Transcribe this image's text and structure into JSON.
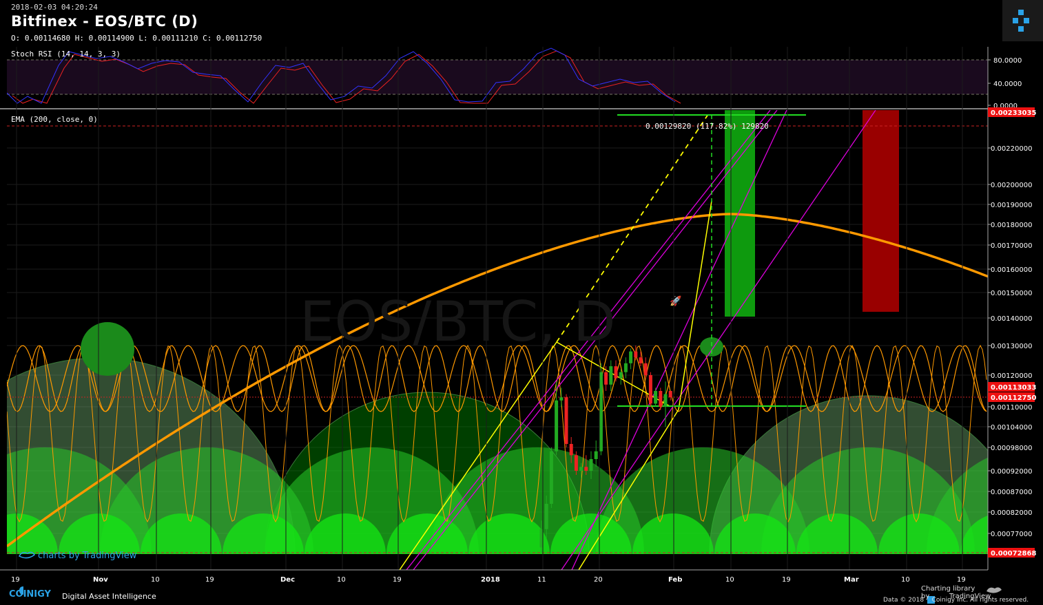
{
  "header": {
    "datetime": "2018-02-03 04:20:24",
    "title": "Bitfinex - EOS/BTC (D)",
    "ohlc": "O: 0.00114680 H: 0.00114900 L: 0.00111210 C: 0.00112750",
    "watermark": "EOS/BTC, D"
  },
  "indicators": {
    "stoch": "Stoch RSI (14, 14, 3, 3)",
    "ema": "EMA (200, close, 0)"
  },
  "measure_label": "0.00129820 (117.82%) 129820",
  "footer": {
    "brand": "COINIGY",
    "tagline": "Digital Asset Intelligence",
    "tv_watermark": "charts by TradingView",
    "charting_lib": "Charting library by",
    "tradingview": "TradingView",
    "copyright": "Data © 2018",
    "copyright2": "Coinigy Inc. All rights reserved."
  },
  "colors": {
    "up": "#22aa22",
    "down": "#ee2222",
    "ema": "#ff9900",
    "cycle": "#ff9900",
    "fib": "#ffff00",
    "channel": "#dd00dd",
    "target": "#22cc22",
    "stop": "#aa0000",
    "stoch_k": "#3333ff",
    "stoch_d": "#ee2222"
  },
  "chart_data": [
    {
      "type": "line",
      "name": "Stoch RSI",
      "yticks": [
        "80.0000",
        "40.0000",
        "0.0000"
      ],
      "ylim": [
        0,
        100
      ],
      "levels": [
        80,
        20
      ]
    },
    {
      "type": "candlestick",
      "symbol": "EOS/BTC",
      "interval": "D",
      "ylim": [
        0.0007,
        0.00235
      ],
      "yticks": [
        "0.00220000",
        "0.00200000",
        "0.00190000",
        "0.00180000",
        "0.00170000",
        "0.00160000",
        "0.00150000",
        "0.00140000",
        "0.00130000",
        "0.00120000",
        "0.00110000",
        "0.00104000",
        "0.00098000",
        "0.00092000",
        "0.00087000",
        "0.00082000",
        "0.00077000"
      ],
      "price_labels": {
        "top": "0.00233035",
        "current_high": "0.00113033",
        "last": "0.00112750",
        "low": "0.00072868"
      },
      "xticks": [
        "19",
        "Nov",
        "10",
        "19",
        "Dec",
        "10",
        "19",
        "2018",
        "11",
        "20",
        "Feb",
        "10",
        "19",
        "Mar",
        "10",
        "19"
      ],
      "candles": [
        {
          "date": "2018-01-07",
          "o": 0.00074,
          "h": 0.0008,
          "l": 0.00072,
          "c": 0.00078
        },
        {
          "date": "2018-01-08",
          "o": 0.00078,
          "h": 0.00086,
          "l": 0.00076,
          "c": 0.00084
        },
        {
          "date": "2018-01-09",
          "o": 0.00084,
          "h": 0.00098,
          "l": 0.00083,
          "c": 0.00097
        },
        {
          "date": "2018-01-10",
          "o": 0.00097,
          "h": 0.00118,
          "l": 0.00096,
          "c": 0.00112
        },
        {
          "date": "2018-01-11",
          "o": 0.00112,
          "h": 0.00116,
          "l": 0.0011,
          "c": 0.00113
        },
        {
          "date": "2018-01-12",
          "o": 0.00113,
          "h": 0.00114,
          "l": 0.00098,
          "c": 0.00099
        },
        {
          "date": "2018-01-13",
          "o": 0.00099,
          "h": 0.00101,
          "l": 0.00094,
          "c": 0.00096
        },
        {
          "date": "2018-01-14",
          "o": 0.00096,
          "h": 0.00097,
          "l": 0.00091,
          "c": 0.00092
        },
        {
          "date": "2018-01-15",
          "o": 0.00092,
          "h": 0.00094,
          "l": 0.0009,
          "c": 0.00093
        },
        {
          "date": "2018-01-16",
          "o": 0.00093,
          "h": 0.00096,
          "l": 0.00091,
          "c": 0.00092
        },
        {
          "date": "2018-01-17",
          "o": 0.00092,
          "h": 0.00097,
          "l": 0.0009,
          "c": 0.00095
        },
        {
          "date": "2018-01-18",
          "o": 0.00095,
          "h": 0.001,
          "l": 0.00093,
          "c": 0.00097
        },
        {
          "date": "2018-01-19",
          "o": 0.00097,
          "h": 0.00124,
          "l": 0.00096,
          "c": 0.00121
        },
        {
          "date": "2018-01-20",
          "o": 0.00121,
          "h": 0.00123,
          "l": 0.00115,
          "c": 0.00117
        },
        {
          "date": "2018-01-21",
          "o": 0.00117,
          "h": 0.00125,
          "l": 0.00115,
          "c": 0.00123
        },
        {
          "date": "2018-01-22",
          "o": 0.00123,
          "h": 0.00125,
          "l": 0.00118,
          "c": 0.00119
        },
        {
          "date": "2018-01-23",
          "o": 0.00119,
          "h": 0.00122,
          "l": 0.00117,
          "c": 0.00121
        },
        {
          "date": "2018-01-24",
          "o": 0.00121,
          "h": 0.00126,
          "l": 0.00119,
          "c": 0.00124
        },
        {
          "date": "2018-01-25",
          "o": 0.00124,
          "h": 0.00129,
          "l": 0.00122,
          "c": 0.00128
        },
        {
          "date": "2018-01-26",
          "o": 0.00128,
          "h": 0.0013,
          "l": 0.00125,
          "c": 0.00126
        },
        {
          "date": "2018-01-27",
          "o": 0.00126,
          "h": 0.00128,
          "l": 0.00123,
          "c": 0.00124
        },
        {
          "date": "2018-01-28",
          "o": 0.00124,
          "h": 0.00126,
          "l": 0.00119,
          "c": 0.0012
        },
        {
          "date": "2018-01-29",
          "o": 0.0012,
          "h": 0.00121,
          "l": 0.0011,
          "c": 0.00111
        },
        {
          "date": "2018-01-30",
          "o": 0.00111,
          "h": 0.00116,
          "l": 0.0011,
          "c": 0.00115
        },
        {
          "date": "2018-01-31",
          "o": 0.00115,
          "h": 0.00116,
          "l": 0.00109,
          "c": 0.0011
        },
        {
          "date": "2018-02-01",
          "o": 0.0011,
          "h": 0.00118,
          "l": 0.00104,
          "c": 0.00114
        },
        {
          "date": "2018-02-02",
          "o": 0.00115,
          "h": 0.00115,
          "l": 0.00112,
          "c": 0.00113
        }
      ],
      "ema_200": "dome-shaped curve peaking near 0.00185 around Feb 10",
      "target_box": {
        "from": 0.00138,
        "to": 0.00233
      },
      "stop_box": {
        "from": 0.0014,
        "to": 0.00233
      }
    }
  ]
}
